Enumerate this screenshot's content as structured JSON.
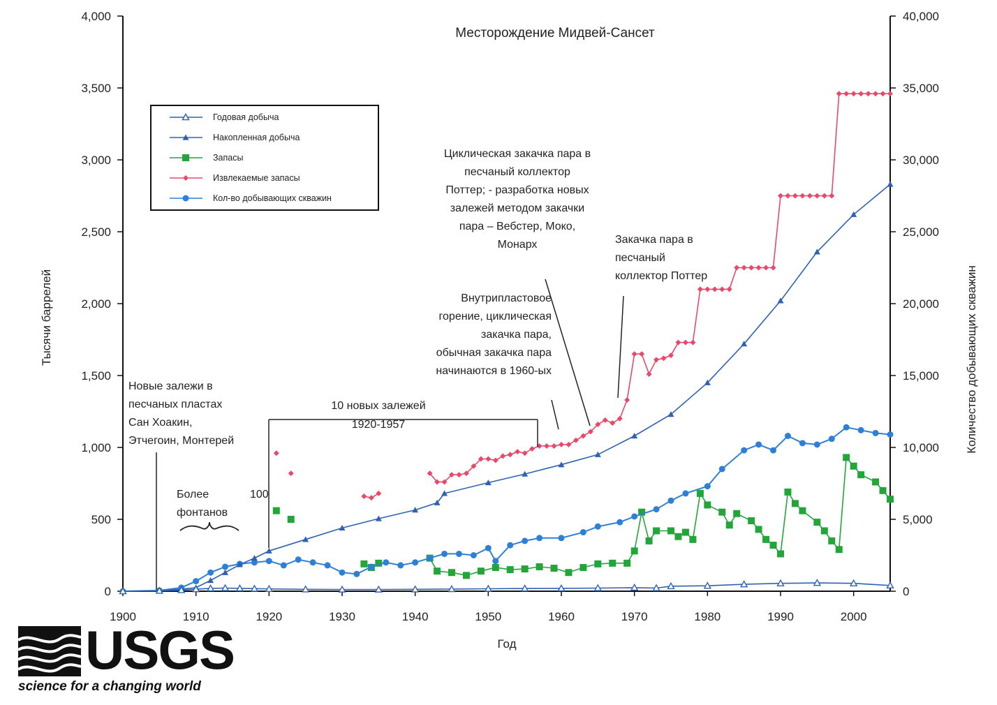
{
  "chart_data": {
    "type": "line",
    "title": "Месторождение Мидвей-Сансет",
    "xlabel": "Год",
    "ylabel_left": "Тысячи баррелей",
    "ylabel_right": "Количество добывающих скважин",
    "xlim": [
      1900,
      2005
    ],
    "ylim_left": [
      0,
      4000
    ],
    "ylim_right": [
      0,
      40000
    ],
    "x_ticks": [
      "1900",
      "1910",
      "1920",
      "1930",
      "1940",
      "1950",
      "1960",
      "1970",
      "1980",
      "1990",
      "2000"
    ],
    "y_left_ticks": [
      "0",
      "500",
      "1,000",
      "1,500",
      "2,000",
      "2,500",
      "3,000",
      "3,500",
      "4,000"
    ],
    "y_right_ticks": [
      "0",
      "5,000",
      "10,000",
      "15,000",
      "20,000",
      "25,000",
      "30,000",
      "35,000",
      "40,000"
    ],
    "grid": false,
    "legend_position": "top-left",
    "series": [
      {
        "name": "Годовая добыча",
        "axis": "left",
        "color": "#2e62b0",
        "marker": "open-triangle",
        "points": [
          [
            1900,
            0
          ],
          [
            1905,
            3
          ],
          [
            1908,
            8
          ],
          [
            1910,
            14
          ],
          [
            1912,
            20
          ],
          [
            1914,
            22
          ],
          [
            1916,
            20
          ],
          [
            1918,
            18
          ],
          [
            1920,
            16
          ],
          [
            1925,
            13
          ],
          [
            1930,
            12
          ],
          [
            1935,
            12
          ],
          [
            1940,
            13
          ],
          [
            1945,
            15
          ],
          [
            1950,
            17
          ],
          [
            1955,
            19
          ],
          [
            1960,
            20
          ],
          [
            1965,
            22
          ],
          [
            1970,
            25
          ],
          [
            1973,
            22
          ],
          [
            1975,
            35
          ],
          [
            1980,
            38
          ],
          [
            1985,
            48
          ],
          [
            1990,
            55
          ],
          [
            1995,
            58
          ],
          [
            2000,
            55
          ],
          [
            2005,
            40
          ]
        ]
      },
      {
        "name": "Накопленная добыча",
        "axis": "left",
        "color": "#2e62b0",
        "marker": "filled-triangle",
        "points": [
          [
            1900,
            0
          ],
          [
            1905,
            3
          ],
          [
            1908,
            14
          ],
          [
            1910,
            25
          ],
          [
            1912,
            75
          ],
          [
            1914,
            130
          ],
          [
            1916,
            185
          ],
          [
            1918,
            230
          ],
          [
            1920,
            280
          ],
          [
            1925,
            360
          ],
          [
            1930,
            440
          ],
          [
            1935,
            505
          ],
          [
            1940,
            565
          ],
          [
            1943,
            615
          ],
          [
            1944,
            680
          ],
          [
            1950,
            755
          ],
          [
            1955,
            815
          ],
          [
            1960,
            880
          ],
          [
            1965,
            950
          ],
          [
            1970,
            1080
          ],
          [
            1975,
            1230
          ],
          [
            1980,
            1450
          ],
          [
            1985,
            1720
          ],
          [
            1990,
            2020
          ],
          [
            1995,
            2360
          ],
          [
            2000,
            2620
          ],
          [
            2005,
            2830
          ]
        ]
      },
      {
        "name": "Запасы",
        "axis": "left",
        "color": "#22a63a",
        "marker": "filled-square",
        "segments": [
          [
            [
              1921,
              560
            ]
          ],
          [
            [
              1923,
              500
            ]
          ],
          [
            [
              1933,
              190
            ],
            [
              1934,
              165
            ],
            [
              1935,
              195
            ]
          ],
          [
            [
              1942,
              230
            ],
            [
              1943,
              140
            ],
            [
              1945,
              130
            ],
            [
              1947,
              110
            ],
            [
              1949,
              140
            ],
            [
              1951,
              165
            ],
            [
              1953,
              150
            ],
            [
              1955,
              155
            ],
            [
              1957,
              170
            ],
            [
              1959,
              160
            ],
            [
              1961,
              130
            ],
            [
              1963,
              165
            ],
            [
              1965,
              190
            ],
            [
              1967,
              195
            ],
            [
              1969,
              195
            ],
            [
              1970,
              280
            ],
            [
              1971,
              550
            ],
            [
              1972,
              350
            ],
            [
              1973,
              420
            ],
            [
              1975,
              420
            ],
            [
              1976,
              380
            ],
            [
              1977,
              410
            ],
            [
              1978,
              360
            ],
            [
              1979,
              680
            ],
            [
              1980,
              600
            ],
            [
              1982,
              550
            ],
            [
              1983,
              460
            ],
            [
              1984,
              540
            ],
            [
              1986,
              490
            ],
            [
              1987,
              430
            ],
            [
              1988,
              360
            ],
            [
              1989,
              320
            ],
            [
              1990,
              260
            ],
            [
              1991,
              690
            ],
            [
              1992,
              610
            ],
            [
              1993,
              560
            ],
            [
              1995,
              480
            ],
            [
              1996,
              420
            ],
            [
              1997,
              350
            ],
            [
              1998,
              290
            ],
            [
              1999,
              930
            ],
            [
              2000,
              870
            ],
            [
              2001,
              810
            ],
            [
              2003,
              760
            ],
            [
              2004,
              700
            ],
            [
              2005,
              640
            ]
          ]
        ]
      },
      {
        "name": "Извлекаемые запасы",
        "axis": "left",
        "color": "#e8496a",
        "marker": "diamond",
        "segments": [
          [
            [
              1921,
              960
            ]
          ],
          [
            [
              1923,
              820
            ]
          ],
          [
            [
              1933,
              660
            ],
            [
              1934,
              650
            ],
            [
              1935,
              680
            ]
          ],
          [
            [
              1942,
              820
            ],
            [
              1943,
              760
            ],
            [
              1944,
              760
            ],
            [
              1945,
              810
            ],
            [
              1946,
              810
            ],
            [
              1947,
              820
            ],
            [
              1948,
              870
            ],
            [
              1949,
              920
            ],
            [
              1950,
              920
            ],
            [
              1951,
              910
            ],
            [
              1952,
              940
            ],
            [
              1953,
              950
            ],
            [
              1954,
              970
            ],
            [
              1955,
              960
            ],
            [
              1956,
              990
            ],
            [
              1957,
              1010
            ],
            [
              1958,
              1010
            ],
            [
              1959,
              1010
            ],
            [
              1960,
              1020
            ],
            [
              1961,
              1020
            ],
            [
              1962,
              1050
            ],
            [
              1963,
              1080
            ],
            [
              1964,
              1110
            ],
            [
              1965,
              1160
            ],
            [
              1966,
              1190
            ],
            [
              1967,
              1170
            ],
            [
              1968,
              1200
            ],
            [
              1969,
              1330
            ],
            [
              1970,
              1650
            ],
            [
              1971,
              1650
            ],
            [
              1972,
              1510
            ],
            [
              1973,
              1610
            ],
            [
              1974,
              1620
            ],
            [
              1975,
              1640
            ],
            [
              1976,
              1730
            ],
            [
              1977,
              1730
            ],
            [
              1978,
              1730
            ],
            [
              1979,
              2100
            ],
            [
              1980,
              2100
            ],
            [
              1981,
              2100
            ],
            [
              1982,
              2100
            ],
            [
              1983,
              2100
            ],
            [
              1984,
              2250
            ],
            [
              1985,
              2250
            ],
            [
              1986,
              2250
            ],
            [
              1987,
              2250
            ],
            [
              1988,
              2250
            ],
            [
              1989,
              2250
            ],
            [
              1990,
              2750
            ],
            [
              1991,
              2750
            ],
            [
              1992,
              2750
            ],
            [
              1993,
              2750
            ],
            [
              1994,
              2750
            ],
            [
              1995,
              2750
            ],
            [
              1996,
              2750
            ],
            [
              1997,
              2750
            ],
            [
              1998,
              3460
            ],
            [
              1999,
              3460
            ],
            [
              2000,
              3460
            ],
            [
              2001,
              3460
            ],
            [
              2002,
              3460
            ],
            [
              2003,
              3460
            ],
            [
              2004,
              3460
            ],
            [
              2005,
              3460
            ]
          ]
        ]
      },
      {
        "name": "Кол-во добывающих скважин",
        "axis": "right",
        "color": "#2e7fd6",
        "marker": "filled-circle",
        "points": [
          [
            1900,
            0
          ],
          [
            1905,
            50
          ],
          [
            1908,
            250
          ],
          [
            1910,
            700
          ],
          [
            1912,
            1300
          ],
          [
            1914,
            1700
          ],
          [
            1916,
            1900
          ],
          [
            1918,
            2000
          ],
          [
            1920,
            2100
          ],
          [
            1922,
            1800
          ],
          [
            1924,
            2200
          ],
          [
            1926,
            2000
          ],
          [
            1928,
            1800
          ],
          [
            1930,
            1300
          ],
          [
            1932,
            1200
          ],
          [
            1934,
            1700
          ],
          [
            1936,
            2000
          ],
          [
            1938,
            1800
          ],
          [
            1940,
            2000
          ],
          [
            1942,
            2300
          ],
          [
            1944,
            2600
          ],
          [
            1946,
            2600
          ],
          [
            1948,
            2500
          ],
          [
            1950,
            3000
          ],
          [
            1951,
            2100
          ],
          [
            1953,
            3200
          ],
          [
            1955,
            3500
          ],
          [
            1957,
            3700
          ],
          [
            1960,
            3700
          ],
          [
            1963,
            4100
          ],
          [
            1965,
            4500
          ],
          [
            1968,
            4800
          ],
          [
            1970,
            5200
          ],
          [
            1973,
            5700
          ],
          [
            1975,
            6300
          ],
          [
            1977,
            6800
          ],
          [
            1980,
            7300
          ],
          [
            1982,
            8500
          ],
          [
            1985,
            9800
          ],
          [
            1987,
            10200
          ],
          [
            1989,
            9800
          ],
          [
            1991,
            10800
          ],
          [
            1993,
            10300
          ],
          [
            1995,
            10200
          ],
          [
            1997,
            10600
          ],
          [
            1999,
            11400
          ],
          [
            2001,
            11200
          ],
          [
            2003,
            11000
          ],
          [
            2005,
            10900
          ]
        ]
      }
    ],
    "annotations": [
      {
        "id": "new_deposits",
        "lines": [
          "Новые залежи в",
          "песчаных пластах",
          "Сан Хоакин,",
          "Этчегоин, Монтерей"
        ]
      },
      {
        "id": "gushers",
        "lines": [
          "Более",
          "фонтанов"
        ]
      },
      {
        "id": "hundred",
        "lines": [
          "100"
        ]
      },
      {
        "id": "ten_new",
        "lines": [
          "10 новых залежей",
          "1920-1957"
        ]
      },
      {
        "id": "in_situ",
        "lines": [
          "Внутрипластовое",
          "горение, циклическая",
          "закачка пара,",
          "обычная закачка пара",
          "начинаются в 1960-ых"
        ]
      },
      {
        "id": "cyclic",
        "lines": [
          "Циклическая закачка пара в",
          "песчаный коллектор",
          "Поттер; - разработка новых",
          "залежей методом закачки",
          "пара – Вебстер, Моко,",
          "Монарх"
        ]
      },
      {
        "id": "potter",
        "lines": [
          "Закачка пара в",
          "песчаный",
          "коллектор Поттер"
        ]
      }
    ]
  },
  "logo": {
    "word": "USGS",
    "tagline": "science for a changing world"
  }
}
